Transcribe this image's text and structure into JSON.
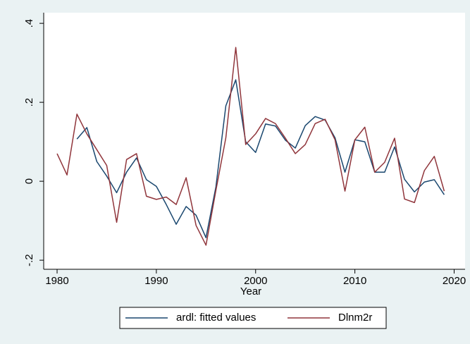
{
  "chart_data": {
    "type": "line",
    "x_label": "Year",
    "x": [
      1980,
      1981,
      1982,
      1983,
      1984,
      1985,
      1986,
      1987,
      1988,
      1989,
      1990,
      1991,
      1992,
      1993,
      1994,
      1995,
      1996,
      1997,
      1998,
      1999,
      2000,
      2001,
      2002,
      2003,
      2004,
      2005,
      2006,
      2007,
      2008,
      2009,
      2010,
      2011,
      2012,
      2013,
      2014,
      2015,
      2016,
      2017,
      2018,
      2019
    ],
    "series": [
      {
        "name": "ardl: fitted values",
        "color": "#1a476f",
        "values": [
          null,
          null,
          0.107,
          0.136,
          0.05,
          0.013,
          -0.029,
          0.023,
          0.059,
          0.004,
          -0.013,
          -0.059,
          -0.109,
          -0.064,
          -0.086,
          -0.143,
          -0.014,
          0.191,
          0.257,
          0.1,
          0.073,
          0.145,
          0.14,
          0.104,
          0.084,
          0.141,
          0.164,
          0.155,
          0.11,
          0.023,
          0.105,
          0.1,
          0.023,
          0.023,
          0.087,
          0.005,
          -0.027,
          -0.002,
          0.004,
          -0.034
        ]
      },
      {
        "name": "Dlnm2r",
        "color": "#90353b",
        "values": [
          0.07,
          0.016,
          0.17,
          0.12,
          0.08,
          0.04,
          -0.104,
          0.055,
          0.07,
          -0.038,
          -0.046,
          -0.04,
          -0.059,
          0.009,
          -0.112,
          -0.162,
          -0.023,
          0.11,
          0.339,
          0.093,
          0.12,
          0.159,
          0.146,
          0.109,
          0.07,
          0.093,
          0.146,
          0.157,
          0.105,
          -0.025,
          0.105,
          0.137,
          0.023,
          0.048,
          0.109,
          -0.045,
          -0.054,
          0.027,
          0.063,
          -0.025
        ]
      }
    ],
    "xlim": [
      1978.65,
      2021.1
    ],
    "xticks": [
      1980,
      1990,
      2000,
      2010,
      2020
    ],
    "ylim": [
      -0.223,
      0.427
    ],
    "yticks": [
      {
        "value": -0.2,
        "label": "-.2"
      },
      0,
      {
        "value": 0.2,
        "label": ".2"
      },
      {
        "value": 0.4,
        "label": ".4"
      }
    ],
    "grid": false,
    "legend": "bottom"
  }
}
